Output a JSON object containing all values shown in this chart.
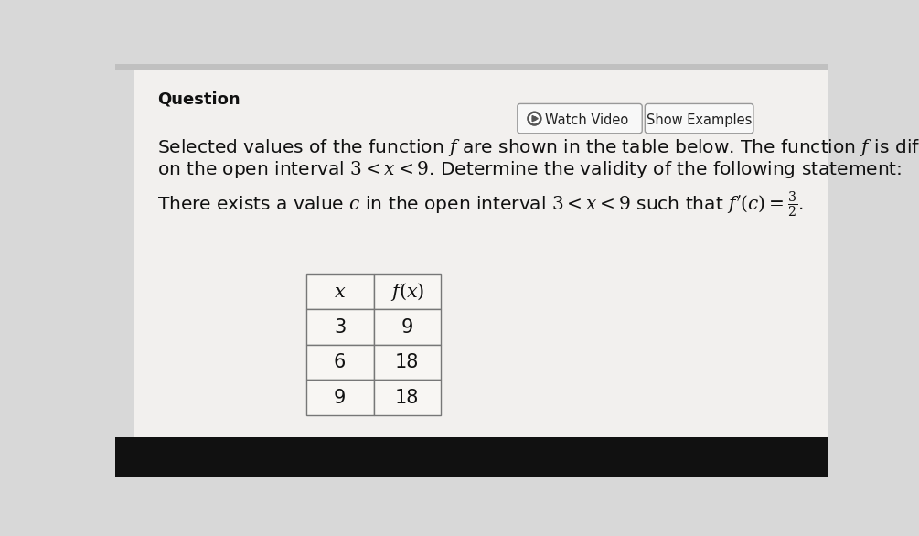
{
  "bg_color": "#d8d8d8",
  "top_strip_color": "#c0c0c0",
  "content_bg": "#f2f0ee",
  "bottom_bar_color": "#111111",
  "question_label": "Question",
  "watch_video_text": "Watch Video",
  "show_examples_text": "Show Examples",
  "table_data": [
    [
      3,
      9
    ],
    [
      6,
      18
    ],
    [
      9,
      18
    ]
  ],
  "font_size_main": 14.5,
  "font_size_question": 13,
  "font_size_button": 10.5,
  "font_size_table": 15
}
